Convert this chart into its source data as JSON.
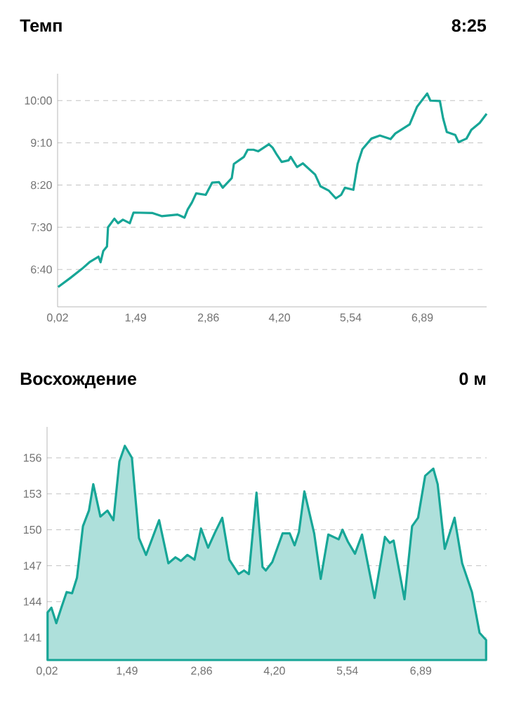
{
  "chart_data": [
    {
      "type": "line",
      "title": "Темп",
      "annotations": [
        "8:25"
      ],
      "color": "#17a697",
      "marker": "none",
      "grid": "y",
      "x": [
        0.03,
        0.26,
        0.48,
        0.62,
        0.79,
        0.83,
        0.88,
        0.95,
        0.97,
        1.09,
        1.16,
        1.25,
        1.38,
        1.45,
        1.81,
        1.98,
        2.28,
        2.41,
        2.47,
        2.55,
        2.63,
        2.81,
        2.93,
        3.06,
        3.13,
        3.3,
        3.34,
        3.53,
        3.6,
        3.71,
        3.8,
        4.0,
        4.07,
        4.15,
        4.24,
        4.37,
        4.41,
        4.53,
        4.64,
        4.87,
        4.97,
        5.13,
        5.26,
        5.36,
        5.43,
        5.59,
        5.67,
        5.76,
        5.93,
        6.09,
        6.29,
        6.38,
        6.65,
        6.79,
        6.98,
        7.04,
        7.22,
        7.28,
        7.35,
        7.51,
        7.57,
        7.72,
        7.81,
        7.97,
        8.1
      ],
      "values": [
        6.32,
        6.5,
        6.68,
        6.81,
        6.92,
        6.81,
        7.03,
        7.12,
        7.5,
        7.67,
        7.58,
        7.65,
        7.58,
        7.79,
        7.78,
        7.72,
        7.75,
        7.69,
        7.85,
        7.99,
        8.17,
        8.14,
        8.38,
        8.39,
        8.28,
        8.47,
        8.75,
        8.89,
        9.03,
        9.03,
        9.0,
        9.14,
        9.07,
        8.93,
        8.79,
        8.82,
        8.89,
        8.69,
        8.76,
        8.54,
        8.31,
        8.22,
        8.07,
        8.14,
        8.28,
        8.24,
        8.75,
        9.04,
        9.25,
        9.31,
        9.24,
        9.35,
        9.53,
        9.88,
        10.14,
        10.0,
        9.99,
        9.65,
        9.38,
        9.32,
        9.18,
        9.25,
        9.42,
        9.56,
        9.74
      ],
      "xlim": [
        0.02,
        8.1
      ],
      "xticks": [
        {
          "value": 0.02,
          "label": "0,02"
        },
        {
          "value": 1.49,
          "label": "1,49"
        },
        {
          "value": 2.86,
          "label": "2,86"
        },
        {
          "value": 4.2,
          "label": "4,20"
        },
        {
          "value": 5.54,
          "label": "5,54"
        },
        {
          "value": 6.89,
          "label": "6,89"
        }
      ],
      "ylim": [
        5.93,
        10.53
      ],
      "yticks": [
        {
          "value": 6.667,
          "label": "6:40"
        },
        {
          "value": 7.5,
          "label": "7:30"
        },
        {
          "value": 8.333,
          "label": "8:20"
        },
        {
          "value": 9.167,
          "label": "9:10"
        },
        {
          "value": 10,
          "label": "10:00"
        }
      ]
    },
    {
      "type": "area",
      "title": "Восхождение",
      "annotations": [
        "0 м"
      ],
      "color": "#17a697",
      "marker": "none",
      "grid": "y",
      "x": [
        0.03,
        0.1,
        0.19,
        0.29,
        0.38,
        0.48,
        0.57,
        0.68,
        0.79,
        0.87,
        1.0,
        1.13,
        1.24,
        1.35,
        1.45,
        1.58,
        1.71,
        1.84,
        2.08,
        2.25,
        2.38,
        2.48,
        2.6,
        2.73,
        2.85,
        2.98,
        3.11,
        3.24,
        3.37,
        3.54,
        3.64,
        3.73,
        3.87,
        3.98,
        4.04,
        4.16,
        4.35,
        4.48,
        4.57,
        4.65,
        4.75,
        4.93,
        5.05,
        5.19,
        5.38,
        5.45,
        5.55,
        5.68,
        5.81,
        6.04,
        6.23,
        6.32,
        6.39,
        6.59,
        6.73,
        6.84,
        6.97,
        7.12,
        7.2,
        7.33,
        7.51,
        7.65,
        7.83,
        7.97,
        8.09
      ],
      "values": [
        143.1,
        143.5,
        142.2,
        143.6,
        144.8,
        144.7,
        146.0,
        150.3,
        151.6,
        153.8,
        151.1,
        151.6,
        150.8,
        155.7,
        157.0,
        156.0,
        149.3,
        147.9,
        150.8,
        147.2,
        147.7,
        147.4,
        147.9,
        147.5,
        150.1,
        148.5,
        149.8,
        151.0,
        147.5,
        146.3,
        146.6,
        146.3,
        153.1,
        146.9,
        146.6,
        147.3,
        149.7,
        149.7,
        148.7,
        149.8,
        153.2,
        149.7,
        145.9,
        149.6,
        149.2,
        150.0,
        149.0,
        148.0,
        149.6,
        144.3,
        149.4,
        148.9,
        149.1,
        144.2,
        150.3,
        151.0,
        154.5,
        155.1,
        153.8,
        148.4,
        151.0,
        147.2,
        144.8,
        141.4,
        140.8
      ],
      "xlim": [
        0.02,
        8.1
      ],
      "xticks": [
        {
          "value": 0.02,
          "label": "0,02"
        },
        {
          "value": 1.49,
          "label": "1,49"
        },
        {
          "value": 2.86,
          "label": "2,86"
        },
        {
          "value": 4.2,
          "label": "4,20"
        },
        {
          "value": 5.54,
          "label": "5,54"
        },
        {
          "value": 6.89,
          "label": "6,89"
        }
      ],
      "ylim": [
        139.13,
        158.58
      ],
      "yticks": [
        141,
        144,
        147,
        150,
        153,
        156
      ]
    }
  ]
}
